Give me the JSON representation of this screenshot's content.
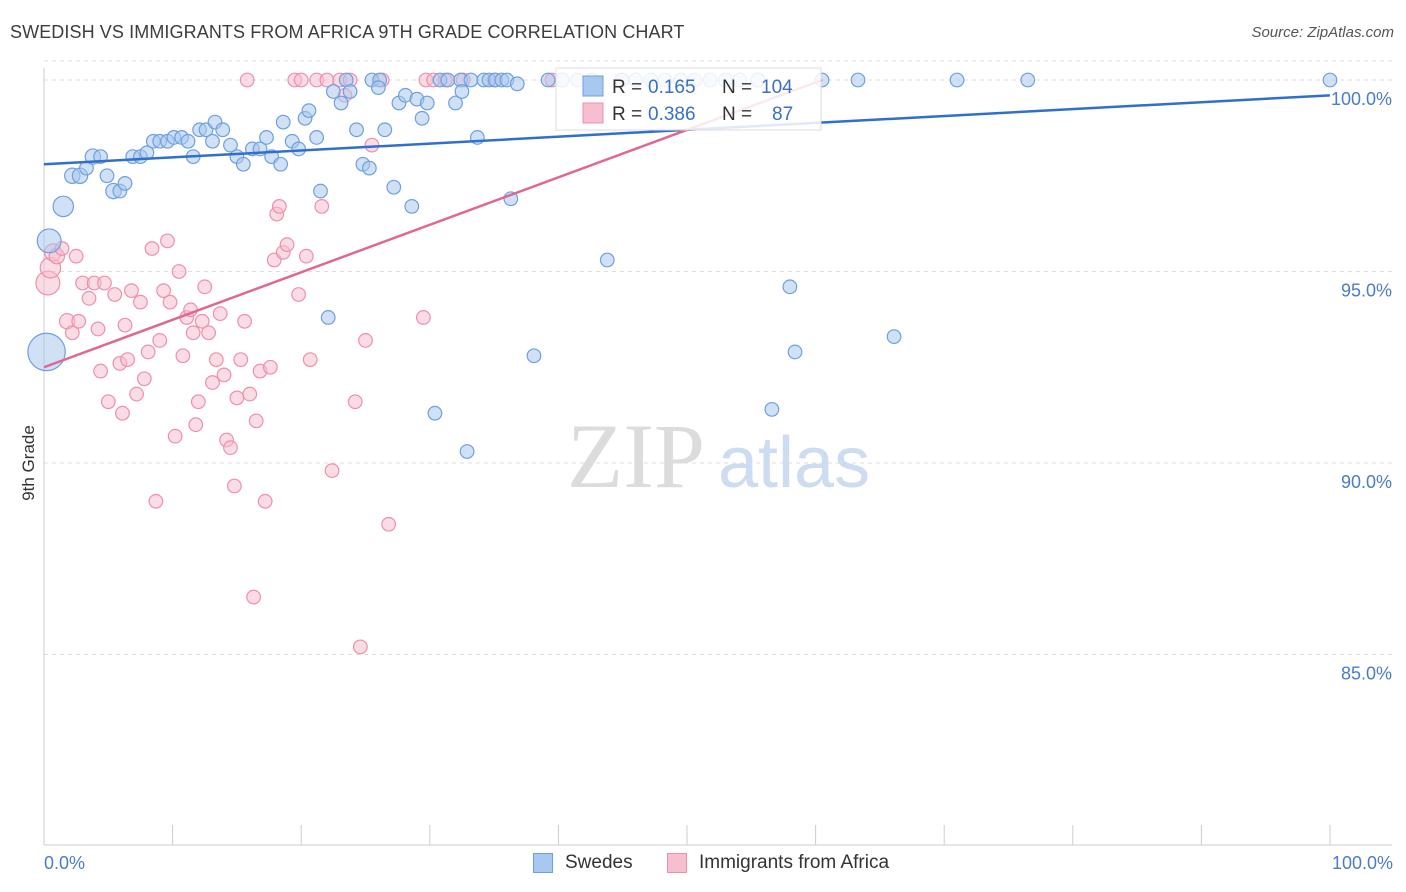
{
  "title": "SWEDISH VS IMMIGRANTS FROM AFRICA 9TH GRADE CORRELATION CHART",
  "source": "Source: ZipAtlas.com",
  "watermark": {
    "zip": "ZIP",
    "atlas": "atlas"
  },
  "colors": {
    "blue_fill": "#a9c8ef",
    "blue_stroke": "#6f9fde",
    "blue_line": "#2f6fd0",
    "pink_fill": "#f6bfd0",
    "pink_stroke": "#ee8fae",
    "pink_line": "#e0678f",
    "tick_text": "#4a7cc7",
    "grid": "#dddddd"
  },
  "legend": {
    "r_label": "R =",
    "n_label": "N =",
    "entries": [
      {
        "r": "0.165",
        "n": "104"
      },
      {
        "r": "0.386",
        "n": "87"
      }
    ]
  },
  "bottom_legend": [
    {
      "label": "Swedes"
    },
    {
      "label": "Immigrants from Africa"
    }
  ],
  "chart_data": {
    "type": "scatter",
    "title": "SWEDISH VS IMMIGRANTS FROM AFRICA 9TH GRADE CORRELATION CHART",
    "xlabel": "",
    "ylabel": "9th Grade",
    "xlim": [
      0,
      100
    ],
    "ylim": [
      80.5,
      100.8
    ],
    "x_tick_labels": [
      "0.0%",
      "100.0%"
    ],
    "y_ticks": [
      85,
      90,
      95,
      100
    ],
    "y_tick_labels": [
      "85.0%",
      "90.0%",
      "95.0%",
      "100.0%"
    ],
    "grid": "horizontal dashed",
    "legend_position": "top-center",
    "series": [
      {
        "name": "Swedes",
        "r": 0.165,
        "n": 104,
        "trend": [
          [
            0,
            97.8
          ],
          [
            100,
            99.6
          ]
        ],
        "points": [
          [
            0.2,
            92.9,
            2.2
          ],
          [
            0.4,
            95.8,
            1.4
          ],
          [
            1.5,
            96.7,
            1.2
          ],
          [
            2.2,
            97.5,
            0.9
          ],
          [
            2.8,
            97.5,
            0.9
          ],
          [
            3.3,
            97.7,
            0.8
          ],
          [
            3.8,
            98.0,
            0.9
          ],
          [
            4.4,
            98.0,
            0.8
          ],
          [
            4.9,
            97.5,
            0.8
          ],
          [
            5.4,
            97.1,
            0.9
          ],
          [
            5.9,
            97.1,
            0.8
          ],
          [
            6.3,
            97.3,
            0.8
          ],
          [
            6.9,
            98.0,
            0.8
          ],
          [
            7.5,
            98.0,
            0.8
          ],
          [
            8.0,
            98.1,
            0.8
          ],
          [
            8.5,
            98.4,
            0.8
          ],
          [
            9.0,
            98.4,
            0.8
          ],
          [
            9.6,
            98.4,
            0.8
          ],
          [
            10.1,
            98.5,
            0.8
          ],
          [
            10.7,
            98.5,
            0.8
          ],
          [
            11.2,
            98.4,
            0.8
          ],
          [
            11.6,
            98.0,
            0.8
          ],
          [
            12.1,
            98.7,
            0.8
          ],
          [
            12.6,
            98.7,
            0.8
          ],
          [
            13.1,
            98.4,
            0.8
          ],
          [
            13.3,
            98.9,
            0.8
          ],
          [
            13.9,
            98.7,
            0.8
          ],
          [
            14.5,
            98.3,
            0.8
          ],
          [
            15.0,
            98.0,
            0.8
          ],
          [
            15.5,
            97.8,
            0.8
          ],
          [
            16.2,
            98.2,
            0.8
          ],
          [
            16.8,
            98.2,
            0.8
          ],
          [
            17.3,
            98.5,
            0.8
          ],
          [
            17.7,
            98.0,
            0.8
          ],
          [
            18.4,
            97.8,
            0.8
          ],
          [
            18.6,
            98.9,
            0.8
          ],
          [
            19.3,
            98.4,
            0.8
          ],
          [
            19.8,
            98.2,
            0.8
          ],
          [
            20.3,
            99.0,
            0.8
          ],
          [
            20.6,
            99.2,
            0.8
          ],
          [
            21.2,
            98.5,
            0.8
          ],
          [
            21.5,
            97.1,
            0.8
          ],
          [
            22.1,
            93.8,
            0.8
          ],
          [
            22.5,
            99.7,
            0.8
          ],
          [
            23.1,
            99.4,
            0.8
          ],
          [
            23.5,
            100.0,
            0.8
          ],
          [
            23.8,
            99.7,
            0.8
          ],
          [
            24.3,
            98.7,
            0.8
          ],
          [
            24.8,
            97.8,
            0.8
          ],
          [
            25.3,
            97.7,
            0.8
          ],
          [
            25.5,
            100.0,
            0.8
          ],
          [
            26.1,
            100.0,
            0.8
          ],
          [
            26.0,
            99.8,
            0.8
          ],
          [
            26.5,
            98.7,
            0.8
          ],
          [
            27.2,
            97.2,
            0.8
          ],
          [
            27.6,
            99.4,
            0.8
          ],
          [
            28.1,
            99.6,
            0.8
          ],
          [
            28.6,
            96.7,
            0.8
          ],
          [
            29.0,
            99.5,
            0.8
          ],
          [
            29.4,
            99.0,
            0.8
          ],
          [
            29.8,
            99.4,
            0.8
          ],
          [
            30.4,
            91.3,
            0.8
          ],
          [
            30.8,
            100.0,
            0.8
          ],
          [
            31.4,
            100.0,
            0.8
          ],
          [
            32.0,
            99.4,
            0.8
          ],
          [
            32.4,
            100.0,
            0.8
          ],
          [
            32.5,
            99.7,
            0.8
          ],
          [
            32.9,
            90.3,
            0.8
          ],
          [
            33.2,
            100.0,
            0.8
          ],
          [
            33.7,
            98.5,
            0.8
          ],
          [
            34.2,
            100.0,
            0.8
          ],
          [
            34.6,
            100.0,
            0.8
          ],
          [
            35.1,
            100.0,
            0.8
          ],
          [
            35.6,
            100.0,
            0.8
          ],
          [
            36.0,
            100.0,
            0.8
          ],
          [
            36.3,
            96.9,
            0.8
          ],
          [
            36.8,
            99.9,
            0.8
          ],
          [
            38.1,
            92.8,
            0.8
          ],
          [
            39.2,
            100.0,
            0.8
          ],
          [
            40.3,
            100.0,
            0.8
          ],
          [
            41.5,
            100.0,
            0.8
          ],
          [
            42.6,
            100.0,
            0.8
          ],
          [
            43.8,
            95.3,
            0.8
          ],
          [
            44.9,
            100.0,
            0.8
          ],
          [
            46.0,
            100.0,
            0.8
          ],
          [
            47.2,
            100.0,
            0.8
          ],
          [
            48.3,
            100.0,
            0.8
          ],
          [
            49.5,
            100.0,
            0.8
          ],
          [
            50.6,
            100.0,
            0.8
          ],
          [
            51.8,
            100.0,
            0.8
          ],
          [
            53.0,
            100.0,
            0.8
          ],
          [
            54.1,
            100.0,
            0.8
          ],
          [
            55.5,
            100.0,
            0.8
          ],
          [
            56.6,
            91.4,
            0.8
          ],
          [
            58.0,
            94.6,
            0.8
          ],
          [
            58.4,
            92.9,
            0.8
          ],
          [
            60.5,
            100.0,
            0.8
          ],
          [
            63.3,
            100.0,
            0.8
          ],
          [
            66.1,
            93.3,
            0.8
          ],
          [
            71.0,
            100.0,
            0.8
          ],
          [
            76.5,
            100.0,
            0.8
          ],
          [
            100.0,
            100.0,
            0.8
          ]
        ]
      },
      {
        "name": "Immigrants from Africa",
        "r": 0.386,
        "n": 87,
        "trend": [
          [
            0,
            92.5
          ],
          [
            60.5,
            100.0
          ]
        ],
        "points": [
          [
            0.3,
            94.7,
            1.4
          ],
          [
            0.5,
            95.1,
            1.2
          ],
          [
            0.7,
            95.5,
            1.0
          ],
          [
            1.0,
            95.4,
            0.9
          ],
          [
            1.4,
            95.6,
            0.8
          ],
          [
            1.8,
            93.7,
            0.9
          ],
          [
            2.2,
            93.4,
            0.8
          ],
          [
            2.5,
            95.4,
            0.8
          ],
          [
            2.7,
            93.7,
            0.8
          ],
          [
            3.0,
            94.7,
            0.8
          ],
          [
            3.5,
            94.3,
            0.8
          ],
          [
            3.9,
            94.7,
            0.8
          ],
          [
            4.2,
            93.5,
            0.8
          ],
          [
            4.4,
            92.4,
            0.8
          ],
          [
            4.7,
            94.7,
            0.8
          ],
          [
            5.0,
            91.6,
            0.8
          ],
          [
            5.5,
            94.4,
            0.8
          ],
          [
            5.9,
            92.6,
            0.8
          ],
          [
            6.1,
            91.3,
            0.8
          ],
          [
            6.3,
            93.6,
            0.8
          ],
          [
            6.5,
            92.7,
            0.8
          ],
          [
            6.8,
            94.5,
            0.8
          ],
          [
            7.2,
            91.8,
            0.8
          ],
          [
            7.5,
            94.2,
            0.8
          ],
          [
            7.8,
            92.2,
            0.8
          ],
          [
            8.1,
            92.9,
            0.8
          ],
          [
            8.4,
            95.6,
            0.8
          ],
          [
            8.7,
            89.0,
            0.8
          ],
          [
            9.0,
            93.2,
            0.8
          ],
          [
            9.3,
            94.5,
            0.8
          ],
          [
            9.6,
            95.8,
            0.8
          ],
          [
            9.8,
            94.2,
            0.8
          ],
          [
            10.2,
            90.7,
            0.8
          ],
          [
            10.5,
            95.0,
            0.8
          ],
          [
            10.8,
            92.8,
            0.8
          ],
          [
            11.1,
            93.8,
            0.8
          ],
          [
            11.4,
            94.0,
            0.8
          ],
          [
            11.6,
            93.4,
            0.8
          ],
          [
            11.8,
            91.0,
            0.8
          ],
          [
            12.0,
            91.6,
            0.8
          ],
          [
            12.3,
            93.7,
            0.8
          ],
          [
            12.5,
            94.6,
            0.8
          ],
          [
            12.8,
            93.4,
            0.8
          ],
          [
            13.1,
            92.1,
            0.8
          ],
          [
            13.4,
            92.7,
            0.8
          ],
          [
            13.7,
            93.9,
            0.8
          ],
          [
            14.0,
            92.3,
            0.8
          ],
          [
            14.2,
            90.6,
            0.8
          ],
          [
            14.5,
            90.4,
            0.8
          ],
          [
            14.8,
            89.4,
            0.8
          ],
          [
            15.0,
            91.7,
            0.8
          ],
          [
            15.3,
            92.7,
            0.8
          ],
          [
            15.6,
            93.7,
            0.8
          ],
          [
            15.8,
            100.0,
            0.8
          ],
          [
            16.0,
            91.8,
            0.8
          ],
          [
            16.3,
            86.5,
            0.8
          ],
          [
            16.5,
            91.1,
            0.8
          ],
          [
            16.8,
            92.4,
            0.8
          ],
          [
            17.2,
            89.0,
            0.8
          ],
          [
            17.6,
            92.5,
            0.8
          ],
          [
            17.9,
            95.3,
            0.8
          ],
          [
            18.1,
            96.5,
            0.8
          ],
          [
            18.3,
            96.7,
            0.8
          ],
          [
            18.6,
            95.5,
            0.8
          ],
          [
            18.9,
            95.7,
            0.8
          ],
          [
            19.5,
            100.0,
            0.8
          ],
          [
            19.8,
            94.4,
            0.8
          ],
          [
            20.0,
            100.0,
            0.8
          ],
          [
            20.4,
            95.4,
            0.8
          ],
          [
            20.7,
            92.7,
            0.8
          ],
          [
            21.2,
            100.0,
            0.8
          ],
          [
            21.6,
            96.7,
            0.8
          ],
          [
            22.0,
            100.0,
            0.8
          ],
          [
            22.4,
            89.8,
            0.8
          ],
          [
            23.0,
            100.0,
            0.8
          ],
          [
            23.4,
            99.6,
            0.8
          ],
          [
            23.8,
            100.0,
            0.8
          ],
          [
            24.2,
            91.6,
            0.8
          ],
          [
            24.6,
            85.2,
            0.8
          ],
          [
            25.0,
            93.2,
            0.8
          ],
          [
            25.5,
            98.3,
            0.8
          ],
          [
            26.3,
            100.0,
            0.8
          ],
          [
            26.8,
            88.4,
            0.8
          ],
          [
            29.7,
            100.0,
            0.8
          ],
          [
            30.3,
            100.0,
            0.8
          ],
          [
            29.5,
            93.8,
            0.8
          ],
          [
            31.2,
            100.0,
            0.8
          ],
          [
            32.6,
            100.0,
            0.8
          ],
          [
            35.0,
            100.0,
            0.8
          ],
          [
            39.5,
            100.0,
            0.8
          ],
          [
            45.0,
            100.0,
            0.8
          ]
        ]
      }
    ]
  }
}
